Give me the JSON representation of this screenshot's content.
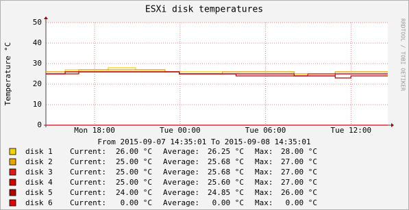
{
  "chart_data": {
    "type": "step",
    "title": "ESXi disk temperatures",
    "ylabel": "Temperature °C",
    "watermark": "RRDTOOL / TOBI OETIKER",
    "period": "From 2015-09-07 14:35:01 To 2015-09-08 14:35:01",
    "legend_labels": {
      "current": "Current:",
      "average": "Average:",
      "max": "Max:"
    },
    "x": [
      14.58,
      15.93,
      16.89,
      18.95,
      20.87,
      22.94,
      23.94,
      26.97,
      27.93,
      32.01,
      32.97,
      34.89,
      35.99
    ],
    "xlim": [
      14.58,
      38.58
    ],
    "xticks": [
      {
        "value": 18,
        "label": "Mon 18:00"
      },
      {
        "value": 24,
        "label": "Tue 00:00"
      },
      {
        "value": 30,
        "label": "Tue 06:00"
      },
      {
        "value": 36,
        "label": "Tue 12:00"
      }
    ],
    "ylim": [
      0,
      50
    ],
    "yticks": [
      0,
      10,
      20,
      30,
      40,
      50
    ],
    "grid": true,
    "series": [
      {
        "name": "disk 1",
        "color": "#f2d200",
        "values": [
          26,
          27,
          27,
          28,
          27,
          26,
          26,
          26,
          26,
          25,
          25,
          26,
          26
        ],
        "stats": {
          "current": "26.00 °C",
          "average": "26.25 °C",
          "max": "28.00 °C"
        }
      },
      {
        "name": "disk 2",
        "color": "#e8a400",
        "values": [
          26,
          26,
          27,
          27,
          27,
          26,
          25,
          26,
          26,
          25,
          25,
          26,
          26
        ],
        "stats": {
          "current": "25.00 °C",
          "average": "25.68 °C",
          "max": "27.00 °C"
        }
      },
      {
        "name": "disk 3",
        "color": "#e01818",
        "values": [
          25,
          26,
          26,
          26,
          26,
          26,
          25,
          25,
          25,
          24,
          25,
          25,
          25
        ],
        "stats": {
          "current": "25.00 °C",
          "average": "25.68 °C",
          "max": "27.00 °C"
        }
      },
      {
        "name": "disk 4",
        "color": "#d00000",
        "values": [
          25,
          26,
          26,
          26,
          26,
          26,
          25,
          25,
          25,
          24,
          24,
          25,
          25
        ],
        "stats": {
          "current": "25.00 °C",
          "average": "25.60 °C",
          "max": "27.00 °C"
        }
      },
      {
        "name": "disk 5",
        "color": "#b00000",
        "values": [
          25,
          25,
          26,
          26,
          26,
          26,
          25,
          25,
          24,
          24,
          24,
          23,
          24
        ],
        "stats": {
          "current": "24.00 °C",
          "average": "24.85 °C",
          "max": "26.00 °C"
        }
      },
      {
        "name": "disk 6",
        "color": "#e00000",
        "values": [
          0,
          0,
          0,
          0,
          0,
          0,
          0,
          0,
          0,
          0,
          0,
          0,
          0
        ],
        "stats": {
          "current": "0.00 °C",
          "average": "0.00 °C",
          "max": "0.00 °C"
        }
      }
    ]
  }
}
